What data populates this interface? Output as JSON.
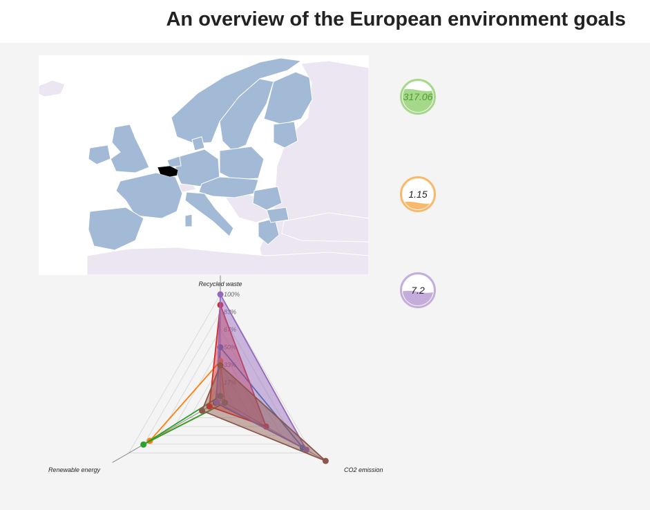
{
  "header": {
    "title": "An overview of the European environment goals"
  },
  "map": {
    "highlight_color": "#000000",
    "eu_color": "#a3bad7",
    "non_eu_color": "#ebe6f2"
  },
  "gauges": [
    {
      "value": "317.06",
      "fill": 0.72,
      "color": "#a6d88a",
      "text_color": "#4f9a31"
    },
    {
      "value": "1.15",
      "fill": 0.22,
      "color": "#f9b96b",
      "text_color": "#222222"
    },
    {
      "value": "7.2",
      "fill": 0.45,
      "color": "#c4addb",
      "text_color": "#222222"
    }
  ],
  "chart_data": {
    "type": "radar",
    "axes": [
      "Recycled waste",
      "CO2 emission",
      "Renewable energy"
    ],
    "scale_labels": [
      "17%",
      "33%",
      "50%",
      "67%",
      "83%",
      "100%"
    ],
    "max": 100,
    "series": [
      {
        "color": "#1f77b4",
        "fill": false,
        "values": [
          50,
          90,
          5
        ]
      },
      {
        "color": "#ff7f0e",
        "fill": false,
        "values": [
          37,
          5,
          77
        ]
      },
      {
        "color": "#2ca02c",
        "fill": false,
        "values": [
          4,
          5,
          84
        ]
      },
      {
        "color": "#d62728",
        "fill": true,
        "values": [
          90,
          50,
          12
        ]
      },
      {
        "color": "#9467bd",
        "fill": true,
        "values": [
          100,
          94,
          4
        ]
      },
      {
        "color": "#8c564b",
        "fill": true,
        "values": [
          33,
          115,
          20
        ]
      }
    ]
  }
}
